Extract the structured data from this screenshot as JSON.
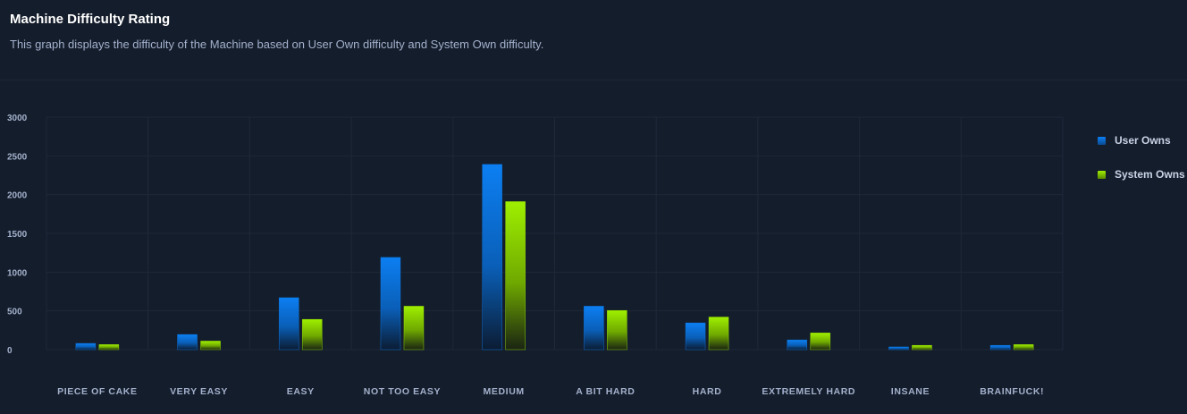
{
  "header": {
    "title": "Machine Difficulty Rating",
    "subtitle": "This graph displays the difficulty of the Machine based on User Own difficulty and System Own difficulty."
  },
  "colors": {
    "background": "#141d2b",
    "grid": "#1e2838",
    "user_owns": "#0c7ff2",
    "system_owns": "#9fef00"
  },
  "chart_data": {
    "type": "bar",
    "categories": [
      "PIECE OF CAKE",
      "VERY EASY",
      "EASY",
      "NOT TOO EASY",
      "MEDIUM",
      "A BIT HARD",
      "HARD",
      "EXTREMELY HARD",
      "INSANE",
      "BRAINFUCK!"
    ],
    "series": [
      {
        "name": "User Owns",
        "values": [
          80,
          195,
          670,
          1190,
          2390,
          560,
          345,
          125,
          35,
          55
        ]
      },
      {
        "name": "System Owns",
        "values": [
          65,
          110,
          390,
          560,
          1910,
          505,
          420,
          215,
          55,
          65
        ]
      }
    ],
    "ylim": [
      0,
      3000
    ],
    "yticks": [
      0,
      500,
      1000,
      1500,
      2000,
      2500,
      3000
    ],
    "grid": true,
    "legend_position": "right"
  }
}
